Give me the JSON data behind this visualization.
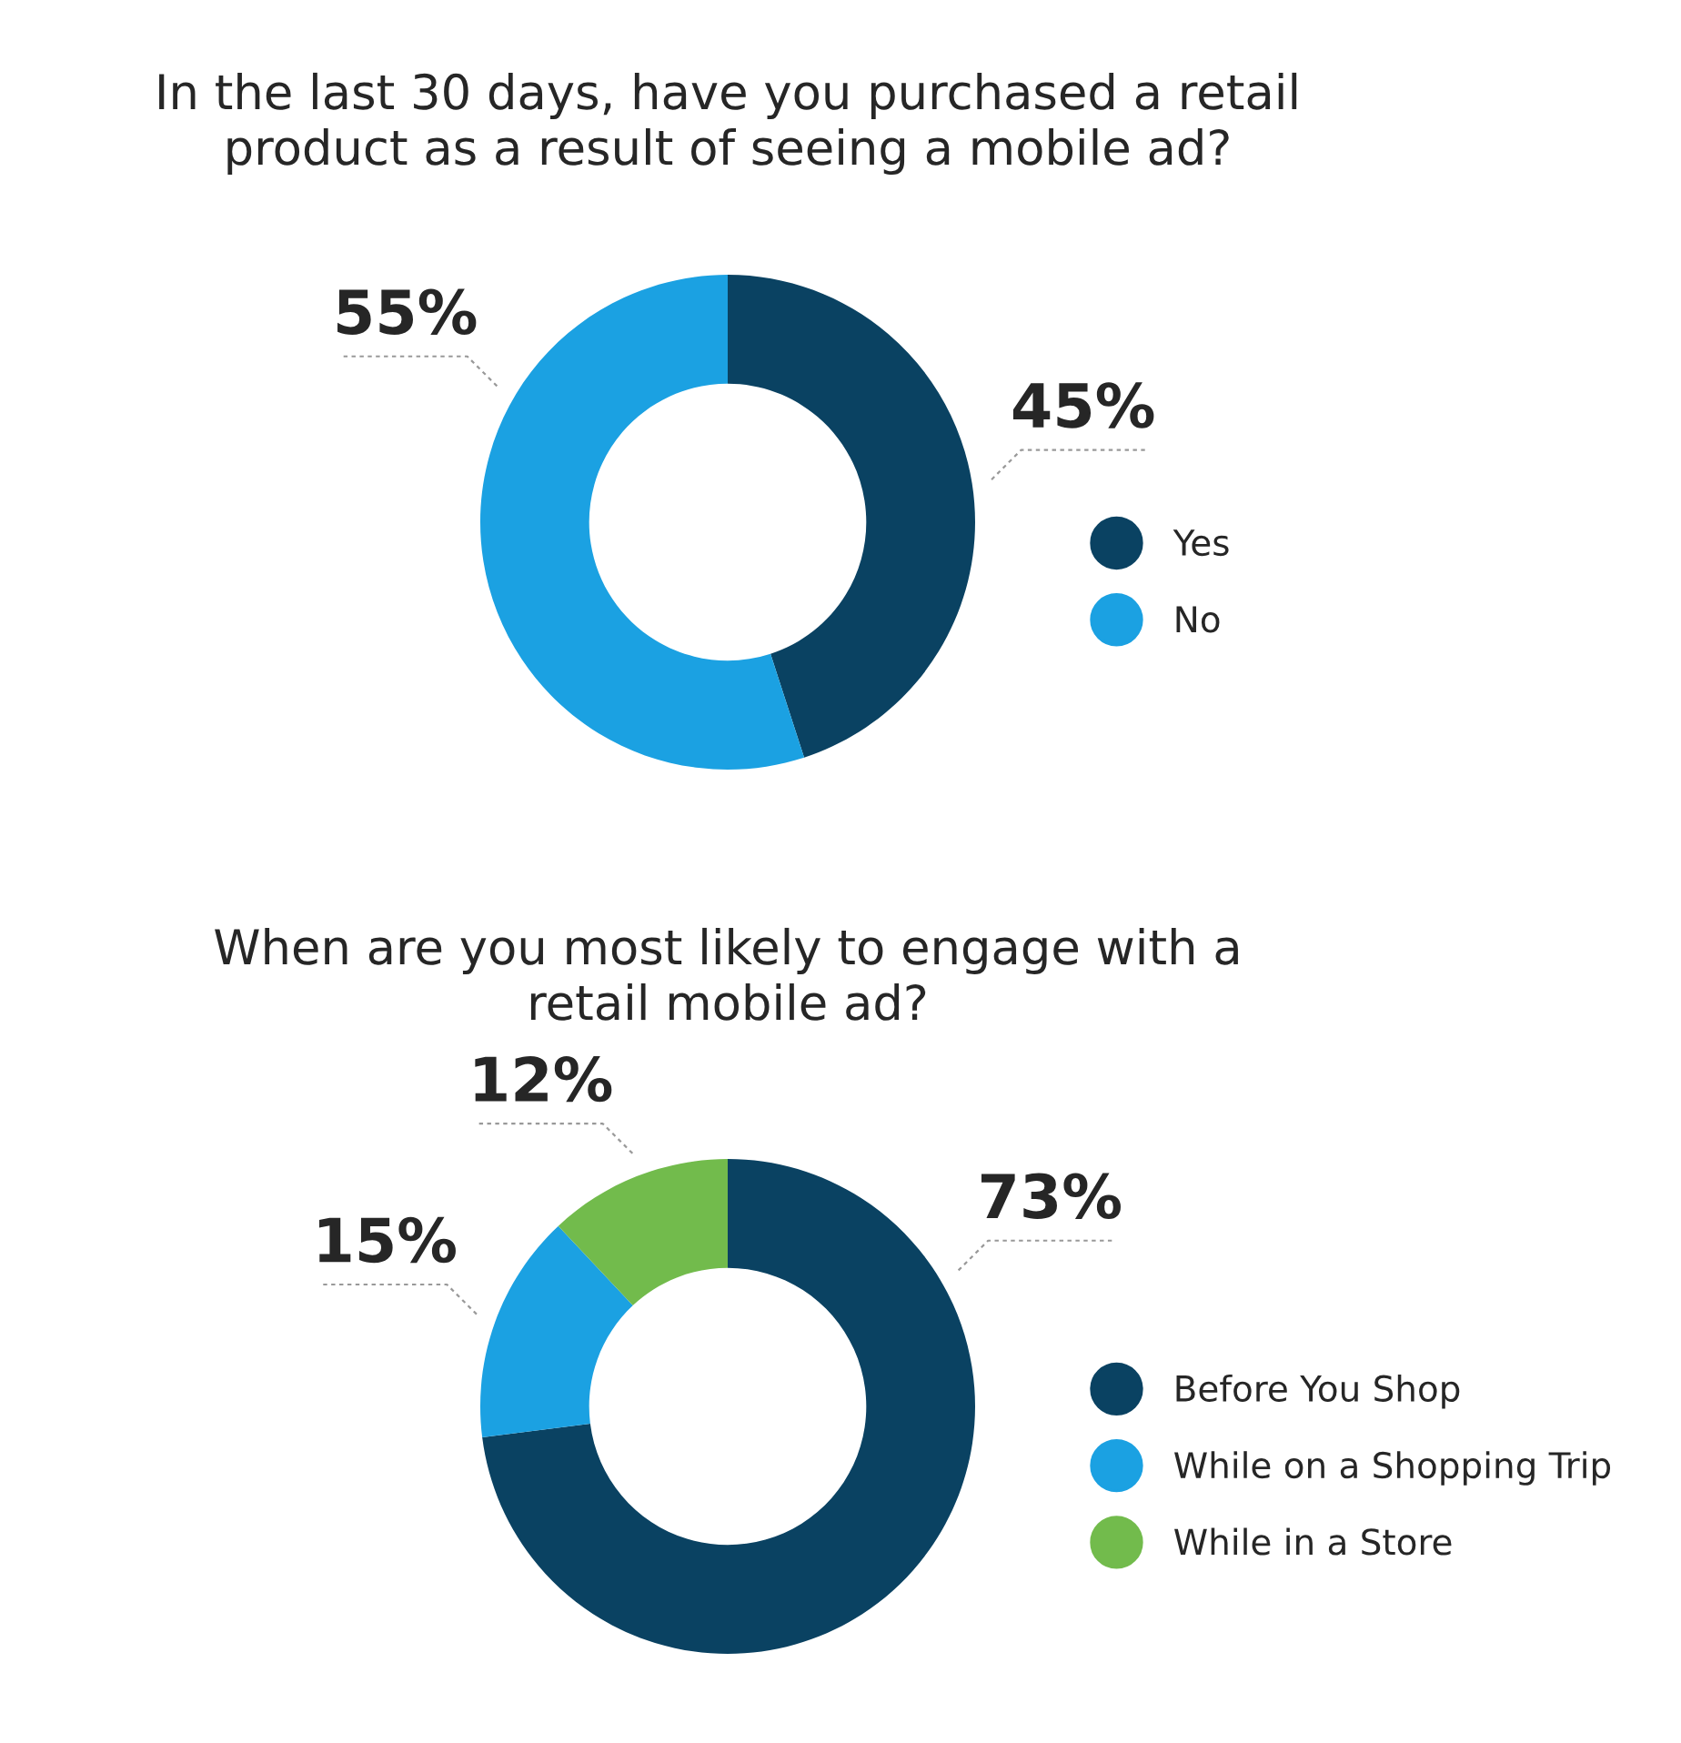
{
  "chart_data": [
    {
      "type": "donut",
      "title": "In the last 30 days, have you purchased a retail\nproduct as a result of seeing a mobile ad?",
      "categories": [
        "Yes",
        "No"
      ],
      "values": [
        45,
        55
      ],
      "colors": [
        "#0a4262",
        "#1ba1e2"
      ],
      "value_labels": [
        "45%",
        "55%"
      ],
      "legend": "right"
    },
    {
      "type": "donut",
      "title": "When are you most likely to engage with a\nretail mobile ad?",
      "categories": [
        "Before You Shop",
        "While on a Shopping Trip",
        "While in a Store"
      ],
      "values": [
        73,
        15,
        12
      ],
      "colors": [
        "#0a4262",
        "#1ba1e2",
        "#72bb4c"
      ],
      "value_labels": [
        "73%",
        "15%",
        "12%"
      ],
      "legend": "right"
    }
  ]
}
